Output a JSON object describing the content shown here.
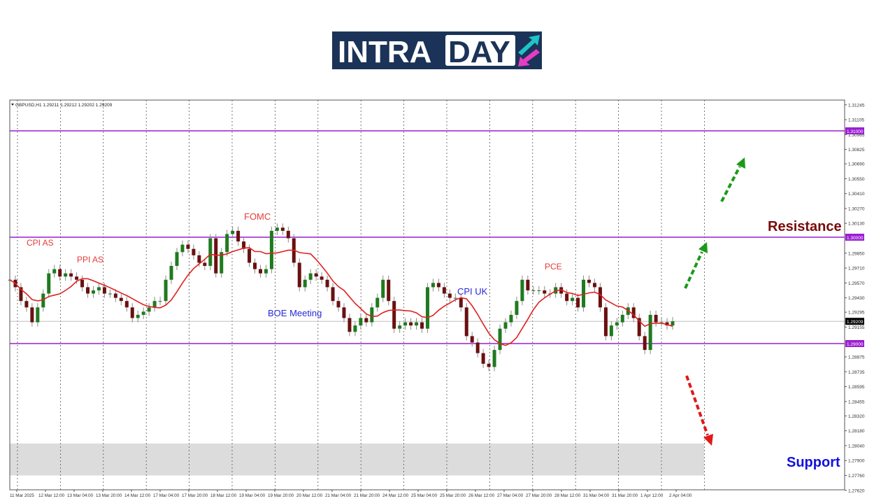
{
  "logo": {
    "text_part1": "INTRA",
    "text_part2": "DAY",
    "background": "#1b3358",
    "arrow_up_color": "#1fc3c8",
    "arrow_down_color": "#e53cc4"
  },
  "chart_data": {
    "type": "candlestick",
    "symbol_header": "GBPUSD,H1  1.29211 1.29212 1.29202 1.29209",
    "ylim": [
      1.2755,
      1.3129
    ],
    "y_ticks": [
      "1.31245",
      "1.31105",
      "1.30965",
      "1.30825",
      "1.30690",
      "1.30550",
      "1.30410",
      "1.30270",
      "1.30130",
      "1.29850",
      "1.29710",
      "1.29570",
      "1.29430",
      "1.29295",
      "1.29155",
      "1.28875",
      "1.28735",
      "1.28595",
      "1.28455",
      "1.28320",
      "1.28180",
      "1.28040",
      "1.27900",
      "1.27760",
      "1.27620"
    ],
    "x_ticks": [
      "11 Mar 2025",
      "12 Mar 12:00",
      "13 Mar 04:00",
      "13 Mar 20:00",
      "14 Mar 12:00",
      "17 Mar 04:00",
      "17 Mar 20:00",
      "18 Mar 12:00",
      "19 Mar 04:00",
      "19 Mar 20:00",
      "20 Mar 12:00",
      "21 Mar 04:00",
      "21 Mar 20:00",
      "24 Mar 12:00",
      "25 Mar 04:00",
      "25 Mar 20:00",
      "26 Mar 12:00",
      "27 Mar 04:00",
      "27 Mar 20:00",
      "28 Mar 12:00",
      "31 Mar 04:00",
      "31 Mar 20:00",
      "1 Apr 12:00",
      "2 Apr 04:00"
    ],
    "closes": [
      1.296,
      1.2953,
      1.294,
      1.2934,
      1.292,
      1.2934,
      1.2947,
      1.2966,
      1.297,
      1.2963,
      1.2966,
      1.2963,
      1.296,
      1.2953,
      1.2947,
      1.295,
      1.2953,
      1.2947,
      1.2947,
      1.2943,
      1.294,
      1.2934,
      1.2924,
      1.2927,
      1.293,
      1.2934,
      1.294,
      1.294,
      1.296,
      1.2973,
      1.2986,
      1.2993,
      1.2989,
      1.2983,
      1.2976,
      1.2973,
      1.2999,
      1.2966,
      1.2986,
      1.3003,
      1.3006,
      1.2996,
      1.2989,
      1.2976,
      1.297,
      1.2966,
      1.297,
      1.3006,
      1.3009,
      1.3006,
      1.2999,
      1.2976,
      1.2953,
      1.296,
      1.2966,
      1.2963,
      1.296,
      1.2953,
      1.294,
      1.2934,
      1.2924,
      1.2911,
      1.2917,
      1.2924,
      1.292,
      1.2934,
      1.2943,
      1.296,
      1.294,
      1.2914,
      1.2917,
      1.292,
      1.2917,
      1.292,
      1.2914,
      1.2953,
      1.2957,
      1.2953,
      1.2947,
      1.2943,
      1.2943,
      1.2934,
      1.2907,
      1.2901,
      1.2891,
      1.2881,
      1.2878,
      1.2894,
      1.2914,
      1.292,
      1.2927,
      1.294,
      1.296,
      1.295,
      1.295,
      1.295,
      1.2947,
      1.2947,
      1.2953,
      1.2947,
      1.294,
      1.2943,
      1.2934,
      1.296,
      1.2957,
      1.2953,
      1.2934,
      1.2907,
      1.2917,
      1.292,
      1.2927,
      1.2934,
      1.2924,
      1.2907,
      1.2894,
      1.2927,
      1.292,
      1.292,
      1.2917,
      1.29209
    ],
    "moving_average_color": "#e02020",
    "current_price": "1.29209",
    "levels": [
      {
        "price": 1.31,
        "label": "1.31000",
        "color": "#9b1fd1"
      },
      {
        "price": 1.3,
        "label": "1.30000",
        "color": "#9b1fd1"
      },
      {
        "price": 1.29,
        "label": "1.29000",
        "color": "#9b1fd1"
      }
    ],
    "support_zone": [
      1.2776,
      1.2806
    ],
    "up_color": "#1f7a1f",
    "down_color": "#6a1010",
    "grid": "vertical dashed",
    "annotations": [
      {
        "text": "CPI AS",
        "color": "#e83a3a"
      },
      {
        "text": "PPI AS",
        "color": "#e83a3a"
      },
      {
        "text": "FOMC",
        "color": "#e83a3a"
      },
      {
        "text": "BOE Meeting",
        "color": "#2828d8"
      },
      {
        "text": "CPI UK",
        "color": "#2828d8"
      },
      {
        "text": "PCE",
        "color": "#e83a3a"
      },
      {
        "text": "Resistance",
        "color": "#7a0a0a"
      },
      {
        "text": "Support",
        "color": "#1010e0"
      }
    ]
  }
}
